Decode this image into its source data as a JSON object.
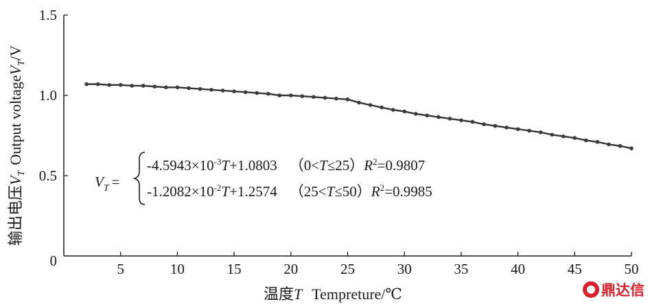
{
  "chart_data": {
    "type": "line",
    "xlabel": "温度T  Tempreture/℃",
    "ylabel": "输出电压VT  Output voltageVT/V",
    "xlim": [
      0,
      50
    ],
    "ylim": [
      0,
      1.5
    ],
    "x_ticks": [
      "0",
      "5",
      "10",
      "15",
      "20",
      "25",
      "30",
      "35",
      "40",
      "45",
      "50"
    ],
    "y_ticks": [
      "0",
      "0.5",
      "1.0",
      "1.5"
    ],
    "grid": false,
    "series": [
      {
        "x": [
          2,
          3,
          4,
          5,
          6,
          7,
          8,
          9,
          10,
          11,
          12,
          13,
          14,
          15,
          16,
          17,
          18,
          19,
          20,
          21,
          22,
          23,
          24,
          25,
          26,
          27,
          28,
          29,
          30,
          31,
          32,
          33,
          34,
          35,
          36,
          37,
          38,
          39,
          40,
          41,
          42,
          43,
          44,
          45,
          46,
          47,
          48,
          49,
          50
        ],
        "values": [
          1.07,
          1.07,
          1.065,
          1.065,
          1.06,
          1.06,
          1.055,
          1.05,
          1.05,
          1.045,
          1.04,
          1.035,
          1.03,
          1.025,
          1.02,
          1.015,
          1.01,
          1.0,
          1.0,
          0.995,
          0.99,
          0.985,
          0.98,
          0.975,
          0.955,
          0.94,
          0.925,
          0.91,
          0.9,
          0.885,
          0.875,
          0.865,
          0.855,
          0.845,
          0.835,
          0.82,
          0.81,
          0.8,
          0.79,
          0.78,
          0.77,
          0.755,
          0.745,
          0.735,
          0.72,
          0.71,
          0.695,
          0.685,
          0.67
        ]
      }
    ],
    "annotation": {
      "lhs_main": "V",
      "lhs_sub": "T",
      "eq": "=",
      "lines": [
        {
          "coef": "-4.5943×10",
          "exp": "-3",
          "var": "T",
          "rest": "+1.0803",
          "range_open": "（0<",
          "range_var": "T",
          "range_close": "≤25）",
          "r_label": "R",
          "r_exp": "2",
          "r_value": "=0.9807"
        },
        {
          "coef": "-1.2082×10",
          "exp": "-2",
          "var": "T",
          "rest": "+1.2574",
          "range_open": "（25<",
          "range_var": "T",
          "range_close": "≤50）",
          "r_label": "R",
          "r_exp": "2",
          "r_value": "=0.9985"
        }
      ]
    }
  },
  "labels": {
    "y_cn": "输出电压",
    "y_var": "V",
    "y_sub": "T",
    "y_en": "Output voltage",
    "y_var2": "V",
    "y_sub2": "T",
    "y_unit": "/V",
    "x_cn": "温度",
    "x_var": "T",
    "x_en": "Tempreture/℃"
  },
  "watermark": {
    "text": "鼎达信",
    "color": "#d9202a"
  }
}
